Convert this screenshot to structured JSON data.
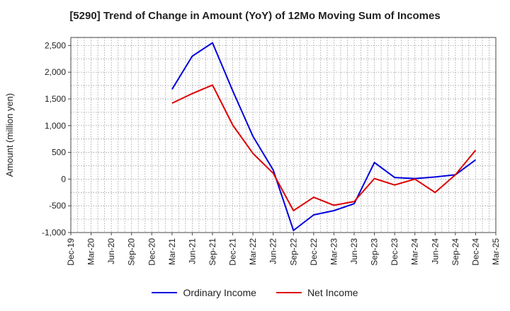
{
  "chart_data": {
    "type": "line",
    "title": "[5290]  Trend of Change in Amount (YoY) of 12Mo Moving Sum of Incomes",
    "ylabel": "Amount (million yen)",
    "xlabel": "",
    "ylim": [
      -1000,
      2650
    ],
    "yticks": [
      2500,
      2000,
      1500,
      1000,
      500,
      0,
      -500,
      -1000
    ],
    "ytick_labels": [
      "2,500",
      "2,000",
      "1,500",
      "1,000",
      "500",
      "0",
      "-500",
      "-1,000"
    ],
    "categories": [
      "Dec-19",
      "Mar-20",
      "Jun-20",
      "Sep-20",
      "Dec-20",
      "Mar-21",
      "Jun-21",
      "Sep-21",
      "Dec-21",
      "Mar-22",
      "Jun-22",
      "Sep-22",
      "Dec-22",
      "Mar-23",
      "Jun-23",
      "Sep-23",
      "Dec-23",
      "Mar-24",
      "Jun-24",
      "Sep-24",
      "Dec-24",
      "Mar-25"
    ],
    "grid": true,
    "legend_position": "bottom",
    "series": [
      {
        "name": "Ordinary Income",
        "color": "#0000dd",
        "values": [
          null,
          null,
          null,
          null,
          null,
          1680,
          2300,
          2550,
          1650,
          800,
          170,
          -960,
          -670,
          -590,
          -460,
          310,
          30,
          10,
          40,
          80,
          360,
          null
        ]
      },
      {
        "name": "Net Income",
        "color": "#dd0000",
        "values": [
          null,
          null,
          null,
          null,
          null,
          1420,
          1600,
          1760,
          1010,
          480,
          110,
          -590,
          -340,
          -490,
          -420,
          10,
          -110,
          0,
          -250,
          80,
          540,
          null
        ]
      }
    ]
  }
}
